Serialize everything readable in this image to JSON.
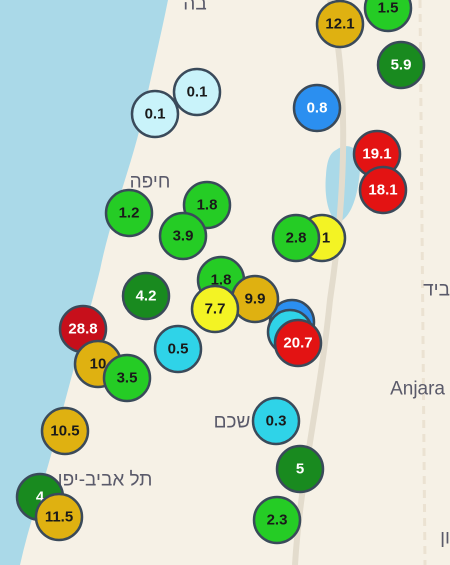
{
  "places": [
    "בה",
    "חיפה",
    "ביד",
    "Anjara",
    "שכם",
    "תל אביב-יפו",
    "ון"
  ],
  "markers": [
    {
      "label": "12.1",
      "color": "#dfb111"
    },
    {
      "label": "1.5",
      "color": "#25cc25"
    },
    {
      "label": "5.9",
      "color": "#198a1f"
    },
    {
      "label": "0.1",
      "color": "#c9f3fa"
    },
    {
      "label": "0.1",
      "color": "#c9f3fa"
    },
    {
      "label": "0.8",
      "color": "#2b8ff0"
    },
    {
      "label": "19.1",
      "color": "#e31313"
    },
    {
      "label": "18.1",
      "color": "#e31313"
    },
    {
      "label": "1",
      "color": "#f3f324"
    },
    {
      "label": "1.8",
      "color": "#25cc25"
    },
    {
      "label": "1.2",
      "color": "#25cc25"
    },
    {
      "label": "3.9",
      "color": "#25cc25"
    },
    {
      "label": "2.8",
      "color": "#25cc25"
    },
    {
      "label": "1.8",
      "color": "#25cc25"
    },
    {
      "label": "4.2",
      "color": "#198a1f"
    },
    {
      "label": "9.9",
      "color": "#dfb111"
    },
    {
      "label": "7.7",
      "color": "#f3f324"
    },
    {
      "label": "20.7",
      "color": "#e31313"
    },
    {
      "label": "28.8",
      "color": "#c70f1b"
    },
    {
      "label": "0.5",
      "color": "#2fd3e8"
    },
    {
      "label": "10",
      "color": "#dfb111"
    },
    {
      "label": "3.5",
      "color": "#25cc25"
    },
    {
      "label": "10.5",
      "color": "#dfb111"
    },
    {
      "label": "0.3",
      "color": "#2fd3e8"
    },
    {
      "label": "5",
      "color": "#198a1f"
    },
    {
      "label": "4",
      "color": "#198a1f"
    },
    {
      "label": "11.5",
      "color": "#dfb111"
    },
    {
      "label": "2.3",
      "color": "#25cc25"
    }
  ]
}
